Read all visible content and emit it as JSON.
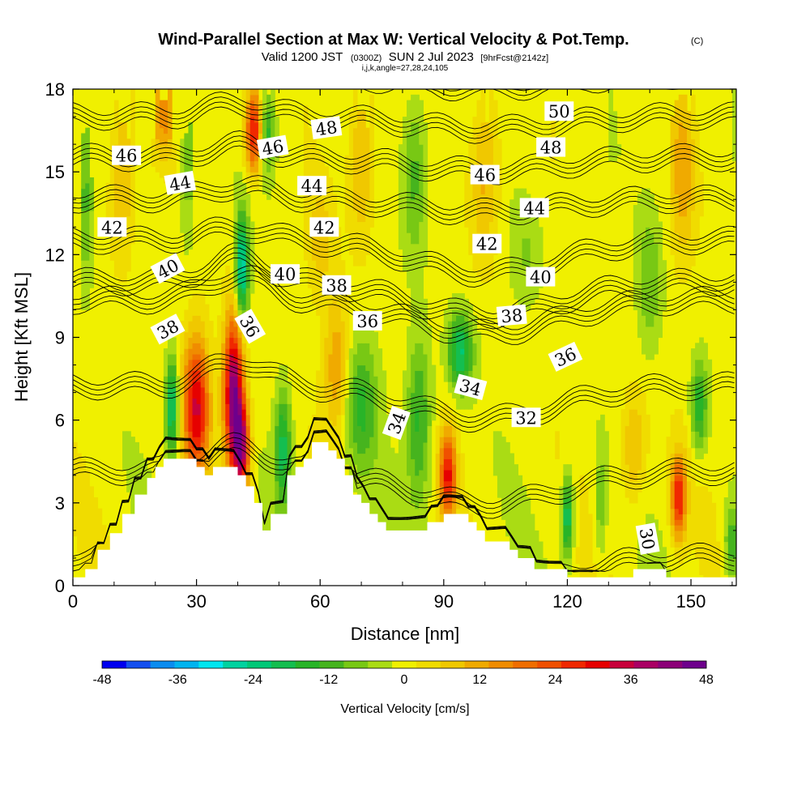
{
  "chart_data": {
    "type": "heatmap",
    "title": "Wind-Parallel Section at Max W: Vertical Velocity & Pot.Temp.",
    "title_mark": "(C)",
    "subtitle_parts": {
      "valid": "Valid 1200 JST",
      "utc": "(0300Z)",
      "date": "SUN 2 Jul 2023",
      "fcst": "[9hrFcst@2142z]"
    },
    "subtitle2": "i,j,k,angle=27,28,24,105",
    "xlabel": "Distance [nm]",
    "ylabel": "Height [Kft MSL]",
    "xlim": [
      0,
      161
    ],
    "ylim": [
      0,
      18
    ],
    "x_ticks": [
      0,
      30,
      60,
      90,
      120,
      150
    ],
    "y_ticks": [
      0,
      3,
      6,
      9,
      12,
      15,
      18
    ],
    "colorbar": {
      "label": "Vertical Velocity [cm/s]",
      "ticks": [
        -48,
        -36,
        -24,
        -12,
        0,
        12,
        24,
        36,
        48
      ],
      "levels": [
        -48,
        -44,
        -40,
        -36,
        -32,
        -28,
        -24,
        -20,
        -16,
        -12,
        -8,
        -4,
        0,
        4,
        8,
        12,
        16,
        20,
        24,
        28,
        32,
        36,
        40,
        44,
        48
      ],
      "colors": [
        "#0000f0",
        "#1450f0",
        "#0a8cf0",
        "#00b4f0",
        "#00e6f0",
        "#00d2a0",
        "#00c878",
        "#14be50",
        "#28b428",
        "#46b41e",
        "#78c814",
        "#aadc14",
        "#f0f000",
        "#f0dc00",
        "#f0c800",
        "#f0aa00",
        "#f08c00",
        "#f06e00",
        "#f05000",
        "#f02800",
        "#e60000",
        "#c8003c",
        "#aa0064",
        "#8c0078",
        "#6e008c"
      ]
    },
    "updrafts": [
      {
        "x": 30,
        "z": 6.5,
        "w": 34,
        "sx": 3.2,
        "sz": 2.5
      },
      {
        "x": 39,
        "z": 7.0,
        "w": 46,
        "sx": 2.4,
        "sz": 2.8
      },
      {
        "x": 41,
        "z": 5.0,
        "w": 36,
        "sx": 2.0,
        "sz": 1.6
      },
      {
        "x": 44,
        "z": 16.5,
        "w": 34,
        "sx": 2.2,
        "sz": 1.5
      },
      {
        "x": 91,
        "z": 4.0,
        "w": 30,
        "sx": 2.0,
        "sz": 1.6
      },
      {
        "x": 147,
        "z": 3.2,
        "w": 30,
        "sx": 1.8,
        "sz": 1.5
      },
      {
        "x": 64,
        "z": 8.0,
        "w": 14,
        "sx": 3.0,
        "sz": 2.5
      },
      {
        "x": 12,
        "z": 15.0,
        "w": 12,
        "sx": 3.0,
        "sz": 3.0
      },
      {
        "x": 100,
        "z": 15.0,
        "w": 12,
        "sx": 3.5,
        "sz": 3.0
      },
      {
        "x": 148,
        "z": 15.0,
        "w": 12,
        "sx": 3.0,
        "sz": 3.0
      },
      {
        "x": 70,
        "z": 15.5,
        "w": 12,
        "sx": 3.0,
        "sz": 3.0
      },
      {
        "x": 22,
        "z": 17.0,
        "w": 14,
        "sx": 3.0,
        "sz": 1.5
      },
      {
        "x": 136,
        "z": 5.0,
        "w": 12,
        "sx": 3.0,
        "sz": 2.0
      },
      {
        "x": 60,
        "z": 12.5,
        "w": 8,
        "sx": 3.0,
        "sz": 2.0
      }
    ],
    "downdrafts": [
      {
        "x": 24,
        "z": 6.5,
        "w": -26,
        "sx": 1.6,
        "sz": 1.8
      },
      {
        "x": 41,
        "z": 11.5,
        "w": -30,
        "sx": 1.6,
        "sz": 2.0
      },
      {
        "x": 47,
        "z": 16.5,
        "w": -18,
        "sx": 2.0,
        "sz": 1.5
      },
      {
        "x": 51,
        "z": 5.0,
        "w": -20,
        "sx": 2.0,
        "sz": 2.2
      },
      {
        "x": 70,
        "z": 6.5,
        "w": -14,
        "sx": 4.0,
        "sz": 2.5
      },
      {
        "x": 84,
        "z": 6.0,
        "w": -16,
        "sx": 3.0,
        "sz": 3.0
      },
      {
        "x": 94,
        "z": 8.5,
        "w": -22,
        "sx": 3.0,
        "sz": 1.4
      },
      {
        "x": 120,
        "z": 2.5,
        "w": -24,
        "sx": 1.4,
        "sz": 1.5
      },
      {
        "x": 128,
        "z": 3.0,
        "w": -10,
        "sx": 1.4,
        "sz": 2.0
      },
      {
        "x": 152,
        "z": 6.5,
        "w": -18,
        "sx": 2.0,
        "sz": 1.6
      },
      {
        "x": 28,
        "z": 15.5,
        "w": -10,
        "sx": 2.0,
        "sz": 3.0
      },
      {
        "x": 3,
        "z": 14.0,
        "w": -12,
        "sx": 2.0,
        "sz": 3.0
      },
      {
        "x": 83,
        "z": 15.0,
        "w": -12,
        "sx": 3.0,
        "sz": 3.0
      },
      {
        "x": 140,
        "z": 11.0,
        "w": -10,
        "sx": 3.0,
        "sz": 2.5
      },
      {
        "x": 110,
        "z": 12.0,
        "w": -6,
        "sx": 4.0,
        "sz": 2.0
      },
      {
        "x": 160,
        "z": 1.5,
        "w": -14,
        "sx": 2.0,
        "sz": 1.5
      }
    ],
    "terrain": {
      "x": [
        0,
        3,
        6,
        9,
        12,
        15,
        18,
        20,
        22,
        24,
        26,
        28,
        30,
        32,
        34,
        36,
        38,
        40,
        42,
        44,
        46,
        48,
        50,
        52,
        54,
        56,
        58,
        60,
        62,
        64,
        66,
        68,
        70,
        72,
        74,
        76,
        78,
        80,
        82,
        84,
        86,
        88,
        90,
        92,
        94,
        96,
        98,
        100,
        102,
        104,
        106,
        108,
        110,
        112,
        114,
        116,
        118,
        120,
        124,
        128,
        132,
        136,
        140,
        144,
        148,
        152,
        156,
        161
      ],
      "z": [
        0.3,
        0.6,
        1.3,
        1.9,
        2.6,
        3.3,
        3.9,
        4.3,
        4.6,
        4.6,
        4.6,
        4.6,
        4.3,
        4.0,
        4.3,
        4.3,
        4.3,
        4.0,
        3.6,
        3.0,
        2.0,
        2.6,
        2.6,
        4.0,
        4.3,
        4.6,
        5.2,
        5.2,
        4.9,
        4.6,
        4.0,
        3.3,
        3.0,
        2.6,
        2.3,
        2.0,
        2.0,
        2.0,
        2.0,
        2.0,
        2.3,
        2.3,
        2.6,
        2.6,
        2.6,
        2.3,
        2.0,
        1.6,
        1.6,
        1.6,
        1.3,
        1.0,
        1.0,
        0.6,
        0.6,
        0.6,
        0.6,
        0.3,
        0.3,
        0.3,
        0.3,
        0.6,
        0.6,
        0.3,
        0.3,
        0.3,
        0.3,
        0.3
      ]
    },
    "theta_levels": [
      30,
      32,
      34,
      36,
      38,
      40,
      42,
      44,
      46,
      48,
      50
    ],
    "contour_labels": [
      {
        "text": "46",
        "x": 13,
        "z": 15.6,
        "angle": 0
      },
      {
        "text": "44",
        "x": 26,
        "z": 14.6,
        "angle": -10
      },
      {
        "text": "42",
        "x": 9.5,
        "z": 13.0,
        "angle": 0
      },
      {
        "text": "40",
        "x": 23,
        "z": 11.5,
        "angle": -28
      },
      {
        "text": "38",
        "x": 23,
        "z": 9.3,
        "angle": -28
      },
      {
        "text": "36",
        "x": 43,
        "z": 9.4,
        "angle": 60
      },
      {
        "text": "46",
        "x": 48.5,
        "z": 15.9,
        "angle": -10
      },
      {
        "text": "48",
        "x": 61.5,
        "z": 16.6,
        "angle": -8
      },
      {
        "text": "44",
        "x": 58,
        "z": 14.5,
        "angle": 0
      },
      {
        "text": "42",
        "x": 61,
        "z": 13.0,
        "angle": 0
      },
      {
        "text": "40",
        "x": 51.5,
        "z": 11.3,
        "angle": 0
      },
      {
        "text": "38",
        "x": 64,
        "z": 10.9,
        "angle": 0
      },
      {
        "text": "36",
        "x": 71.5,
        "z": 9.6,
        "angle": 0
      },
      {
        "text": "34",
        "x": 78.5,
        "z": 5.9,
        "angle": -70
      },
      {
        "text": "34",
        "x": 96.5,
        "z": 7.2,
        "angle": 15
      },
      {
        "text": "32",
        "x": 110,
        "z": 6.1,
        "angle": 0
      },
      {
        "text": "30",
        "x": 139.5,
        "z": 1.7,
        "angle": 80
      },
      {
        "text": "38",
        "x": 106.5,
        "z": 9.8,
        "angle": -5
      },
      {
        "text": "40",
        "x": 113.5,
        "z": 11.2,
        "angle": 0
      },
      {
        "text": "42",
        "x": 100.5,
        "z": 12.4,
        "angle": 0
      },
      {
        "text": "44",
        "x": 112,
        "z": 13.7,
        "angle": 0
      },
      {
        "text": "46",
        "x": 100,
        "z": 14.9,
        "angle": 0
      },
      {
        "text": "48",
        "x": 116,
        "z": 15.9,
        "angle": 0
      },
      {
        "text": "50",
        "x": 118,
        "z": 17.2,
        "angle": 0
      },
      {
        "text": "36",
        "x": 119.5,
        "z": 8.3,
        "angle": -25
      }
    ]
  }
}
